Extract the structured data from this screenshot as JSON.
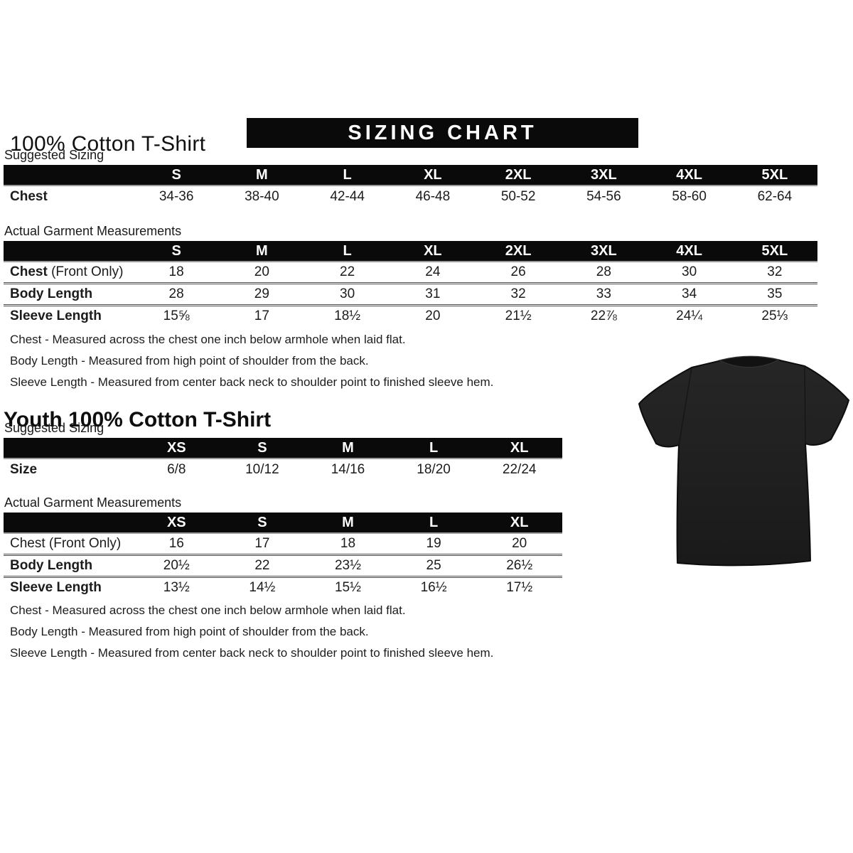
{
  "banner": {
    "label": "SIZING CHART",
    "bg": "#0a0a0a",
    "fg": "#ffffff"
  },
  "adult": {
    "title": "100% Cotton T-Shirt",
    "suggested_label": "Suggested Sizing",
    "actual_label": "Actual Garment Measurements",
    "suggested_table": {
      "columns": [
        "S",
        "M",
        "L",
        "XL",
        "2XL",
        "3XL",
        "4XL",
        "5XL"
      ],
      "rows": [
        {
          "label": "Chest",
          "label_bold": true,
          "label_suffix": "",
          "values": [
            "34-36",
            "38-40",
            "42-44",
            "46-48",
            "50-52",
            "54-56",
            "58-60",
            "62-64"
          ]
        }
      ]
    },
    "actual_table": {
      "columns": [
        "S",
        "M",
        "L",
        "XL",
        "2XL",
        "3XL",
        "4XL",
        "5XL"
      ],
      "rows": [
        {
          "label": "Chest",
          "label_bold": true,
          "label_suffix": " (Front Only)",
          "values": [
            "18",
            "20",
            "22",
            "24",
            "26",
            "28",
            "30",
            "32"
          ]
        },
        {
          "label": "Body Length",
          "label_bold": true,
          "label_suffix": "",
          "values": [
            "28",
            "29",
            "30",
            "31",
            "32",
            "33",
            "34",
            "35"
          ]
        },
        {
          "label": "Sleeve Length",
          "label_bold": true,
          "label_suffix": "",
          "values": [
            "15⅝",
            "17",
            "18½",
            "20",
            "21½",
            "22⅞",
            "24¼",
            "25⅓"
          ]
        }
      ]
    },
    "notes": [
      "Chest - Measured across the chest one inch below armhole when laid flat.",
      "Body Length - Measured from high point of shoulder from the back.",
      "Sleeve Length - Measured from center back neck to shoulder point to finished sleeve hem."
    ]
  },
  "youth": {
    "title": "Youth 100% Cotton T-Shirt",
    "suggested_label": "Suggested Sizing",
    "actual_label": "Actual Garment Measurements",
    "suggested_table": {
      "columns": [
        "XS",
        "S",
        "M",
        "L",
        "XL"
      ],
      "rows": [
        {
          "label": "Size",
          "label_bold": true,
          "label_suffix": "",
          "values": [
            "6/8",
            "10/12",
            "14/16",
            "18/20",
            "22/24"
          ]
        }
      ]
    },
    "actual_table": {
      "columns": [
        "XS",
        "S",
        "M",
        "L",
        "XL"
      ],
      "rows": [
        {
          "label": "Chest (Front Only)",
          "label_bold": false,
          "label_suffix": "",
          "values": [
            "16",
            "17",
            "18",
            "19",
            "20"
          ]
        },
        {
          "label": "Body Length",
          "label_bold": true,
          "label_suffix": "",
          "values": [
            "20½",
            "22",
            "23½",
            "25",
            "26½"
          ]
        },
        {
          "label": "Sleeve Length",
          "label_bold": true,
          "label_suffix": "",
          "values": [
            "13½",
            "14½",
            "15½",
            "16½",
            "17½"
          ]
        }
      ]
    },
    "notes": [
      "Chest - Measured across the chest one inch below armhole when laid flat.",
      "Body Length - Measured from high point of shoulder from the back.",
      "Sleeve Length - Measured from center back neck to shoulder point to finished sleeve hem."
    ]
  },
  "tshirt": {
    "description": "black short-sleeve t-shirt photo",
    "color": "#1f1f1f"
  }
}
